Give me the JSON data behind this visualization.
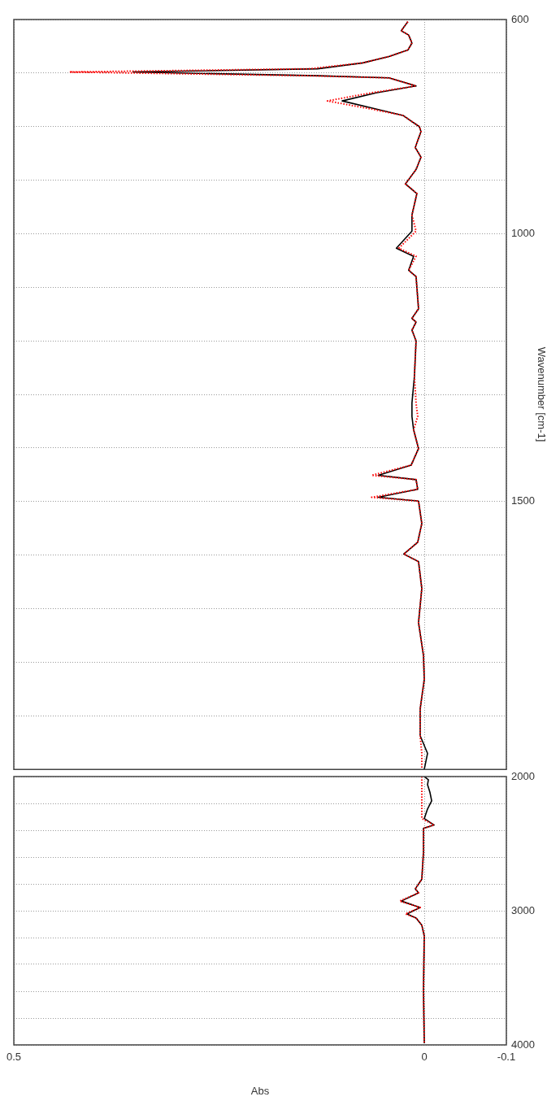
{
  "chart_data": [
    {
      "type": "line",
      "ylabel": "Wavenumber [cm-1]",
      "ylim": [
        2000,
        600
      ],
      "xlim": [
        0.5,
        -0.1
      ],
      "grid": true,
      "tick_labels": "y",
      "yticks": [
        {
          "value": 600,
          "label": "600"
        },
        {
          "value": 700,
          "label": null
        },
        {
          "value": 800,
          "label": null
        },
        {
          "value": 900,
          "label": null
        },
        {
          "value": 1000,
          "label": "1000"
        },
        {
          "value": 1100,
          "label": null
        },
        {
          "value": 1200,
          "label": null
        },
        {
          "value": 1300,
          "label": null
        },
        {
          "value": 1400,
          "label": null
        },
        {
          "value": 1500,
          "label": "1500"
        },
        {
          "value": 1600,
          "label": null
        },
        {
          "value": 1700,
          "label": null
        },
        {
          "value": 1800,
          "label": null
        },
        {
          "value": 1900,
          "label": null
        },
        {
          "value": 2000,
          "label": null
        }
      ],
      "xticks": [
        0.5,
        0,
        -0.1
      ],
      "series": [
        {
          "color": "#000000",
          "line_style": "solid",
          "x": [
            0.02,
            0.028,
            0.019,
            0.015,
            0.02,
            0.043,
            0.075,
            0.13,
            0.355,
            0.13,
            0.043,
            0.01,
            0.059,
            0.1,
            0.059,
            0.026,
            0.006,
            0.004,
            0.011,
            0.004,
            0.01,
            0.023,
            0.009,
            0.015,
            0.015,
            0.034,
            0.013,
            0.019,
            0.01,
            0.007,
            0.015,
            0.01,
            0.015,
            0.01,
            0.012,
            0.015,
            0.015,
            0.013,
            0.007,
            0.016,
            0.056,
            0.01,
            0.008,
            0.056,
            0.007,
            0.003,
            0.008,
            0.025,
            0.007,
            0.003,
            0.007,
            0.001,
            0.0,
            0.005,
            0.005,
            -0.004,
            0.0
          ],
          "values": [
            604,
            621,
            629,
            644,
            657,
            669,
            681,
            692,
            698,
            705,
            709,
            724,
            737,
            752,
            767,
            779,
            800,
            809,
            839,
            857,
            880,
            907,
            925,
            965,
            995,
            1027,
            1042,
            1068,
            1080,
            1140,
            1158,
            1165,
            1180,
            1200,
            1266,
            1316,
            1341,
            1366,
            1401,
            1432,
            1451,
            1459,
            1477,
            1492,
            1499,
            1541,
            1576,
            1598,
            1612,
            1662,
            1726,
            1787,
            1832,
            1887,
            1937,
            1970,
            2000
          ]
        },
        {
          "color": "#ff0000",
          "line_style": "dotted",
          "x": [
            0.02,
            0.028,
            0.019,
            0.015,
            0.02,
            0.043,
            0.075,
            0.14,
            0.432,
            0.14,
            0.043,
            0.01,
            0.065,
            0.118,
            0.065,
            0.026,
            0.006,
            0.004,
            0.011,
            0.004,
            0.01,
            0.023,
            0.009,
            0.015,
            0.01,
            0.031,
            0.01,
            0.019,
            0.01,
            0.007,
            0.015,
            0.01,
            0.015,
            0.01,
            0.012,
            0.01,
            0.008,
            0.013,
            0.007,
            0.016,
            0.064,
            0.01,
            0.008,
            0.064,
            0.007,
            0.003,
            0.008,
            0.025,
            0.007,
            0.003,
            0.007,
            0.001,
            0.0,
            0.005,
            0.005,
            0.003,
            0.003
          ],
          "values": [
            604,
            621,
            629,
            644,
            657,
            669,
            681,
            692,
            698,
            705,
            709,
            724,
            737,
            752,
            767,
            779,
            800,
            809,
            839,
            857,
            880,
            907,
            925,
            965,
            995,
            1027,
            1042,
            1068,
            1080,
            1140,
            1158,
            1165,
            1180,
            1200,
            1266,
            1316,
            1341,
            1366,
            1401,
            1432,
            1451,
            1459,
            1477,
            1492,
            1499,
            1541,
            1576,
            1598,
            1612,
            1662,
            1726,
            1787,
            1832,
            1887,
            1937,
            1970,
            2000
          ]
        }
      ]
    },
    {
      "type": "line",
      "xlabel": "Abs",
      "ylim": [
        4000,
        2000
      ],
      "xlim": [
        0.5,
        -0.1
      ],
      "grid": true,
      "yticks": [
        {
          "value": 2000,
          "label": "2000"
        },
        {
          "value": 2200,
          "label": null
        },
        {
          "value": 2400,
          "label": null
        },
        {
          "value": 2600,
          "label": null
        },
        {
          "value": 2800,
          "label": null
        },
        {
          "value": 3000,
          "label": "3000"
        },
        {
          "value": 3200,
          "label": null
        },
        {
          "value": 3400,
          "label": null
        },
        {
          "value": 3600,
          "label": null
        },
        {
          "value": 3800,
          "label": null
        },
        {
          "value": 4000,
          "label": "4000"
        }
      ],
      "xticks": [
        0.5,
        0,
        -0.1
      ],
      "series": [
        {
          "color": "#000000",
          "line_style": "solid",
          "x": [
            0.0,
            -0.005,
            -0.004,
            -0.007,
            -0.009,
            -0.004,
            0.0,
            -0.012,
            0.001,
            0.001,
            0.003,
            0.011,
            0.007,
            0.028,
            0.005,
            0.021,
            0.01,
            0.003,
            0.0,
            0.001,
            0.0
          ],
          "values": [
            2000,
            2024,
            2060,
            2120,
            2181,
            2241,
            2313,
            2361,
            2386,
            2566,
            2765,
            2837,
            2867,
            2928,
            2976,
            3024,
            3054,
            3108,
            3187,
            3590,
            3988
          ]
        },
        {
          "color": "#ff0000",
          "line_style": "dotted",
          "x": [
            0.003,
            0.003,
            0.003,
            0.003,
            0.003,
            0.003,
            0.003,
            -0.012,
            0.001,
            0.001,
            0.003,
            0.011,
            0.007,
            0.03,
            0.005,
            0.023,
            0.01,
            0.003,
            0.0,
            0.001,
            0.0
          ],
          "values": [
            2000,
            2024,
            2060,
            2120,
            2181,
            2241,
            2313,
            2361,
            2386,
            2566,
            2765,
            2837,
            2867,
            2928,
            2976,
            3024,
            3054,
            3108,
            3187,
            3590,
            3988
          ]
        }
      ]
    }
  ]
}
